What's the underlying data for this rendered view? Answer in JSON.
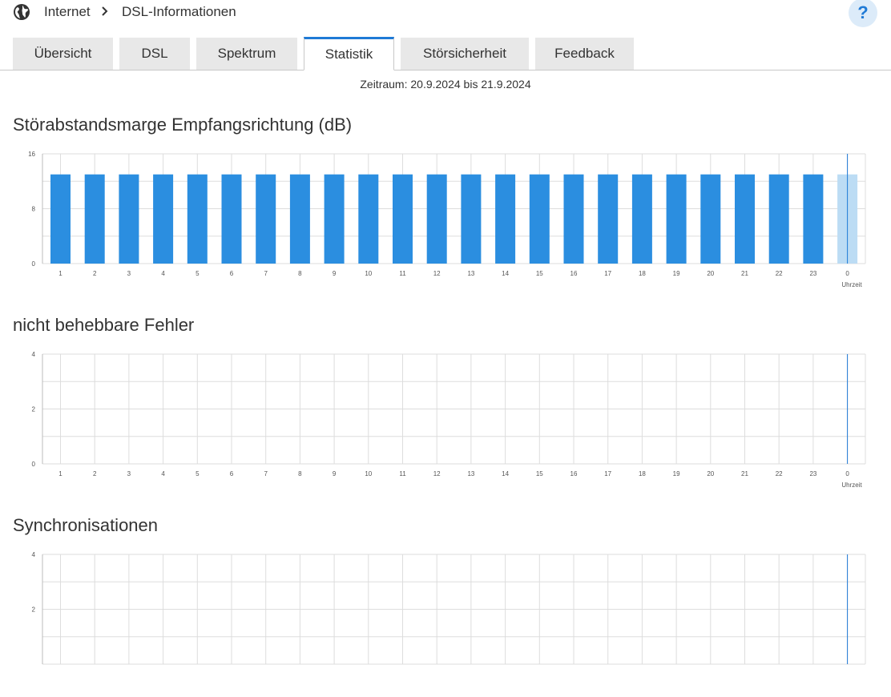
{
  "breadcrumb": {
    "items": [
      "Internet",
      "DSL-Informationen"
    ]
  },
  "help_label": "?",
  "tabs": [
    {
      "label": "Übersicht",
      "active": false
    },
    {
      "label": "DSL",
      "active": false
    },
    {
      "label": "Spektrum",
      "active": false
    },
    {
      "label": "Statistik",
      "active": true
    },
    {
      "label": "Störsicherheit",
      "active": false
    },
    {
      "label": "Feedback",
      "active": false
    }
  ],
  "period_text": "Zeitraum: 20.9.2024 bis 21.9.2024",
  "colors": {
    "accent": "#1f7ad6",
    "bar": "#2b8ee0",
    "bar_current": "#bcdcf4",
    "grid": "#dddddd"
  },
  "charts": [
    {
      "title": "Störabstandsmarge Empfangsrichtung (dB)"
    },
    {
      "title": "nicht behebbare Fehler"
    },
    {
      "title": "Synchronisationen"
    }
  ],
  "chart_data": [
    {
      "type": "bar",
      "title": "Störabstandsmarge Empfangsrichtung (dB)",
      "xlabel": "Uhrzeit",
      "ylabel": "",
      "ylim": [
        0,
        16
      ],
      "yticks": [
        "0",
        "8",
        "16"
      ],
      "categories": [
        "1",
        "2",
        "3",
        "4",
        "5",
        "6",
        "7",
        "8",
        "9",
        "10",
        "11",
        "12",
        "13",
        "14",
        "15",
        "16",
        "17",
        "18",
        "19",
        "20",
        "21",
        "22",
        "23",
        "0"
      ],
      "values": [
        13,
        13,
        13,
        13,
        13,
        13,
        13,
        13,
        13,
        13,
        13,
        13,
        13,
        13,
        13,
        13,
        13,
        13,
        13,
        13,
        13,
        13,
        13,
        13
      ],
      "current_index": 23,
      "grid": true
    },
    {
      "type": "bar",
      "title": "nicht behebbare Fehler",
      "xlabel": "Uhrzeit",
      "ylabel": "",
      "ylim": [
        0,
        4
      ],
      "yticks": [
        "0",
        "2",
        "4"
      ],
      "categories": [
        "1",
        "2",
        "3",
        "4",
        "5",
        "6",
        "7",
        "8",
        "9",
        "10",
        "11",
        "12",
        "13",
        "14",
        "15",
        "16",
        "17",
        "18",
        "19",
        "20",
        "21",
        "22",
        "23",
        "0"
      ],
      "values": [
        0,
        0,
        0,
        0,
        0,
        0,
        0,
        0,
        0,
        0,
        0,
        0,
        0,
        0,
        0,
        0,
        0,
        0,
        0,
        0,
        0,
        0,
        0,
        0
      ],
      "current_index": 23,
      "grid": true
    },
    {
      "type": "bar",
      "title": "Synchronisationen",
      "xlabel": "",
      "ylabel": "",
      "ylim": [
        0,
        4
      ],
      "yticks": [
        "2",
        "4"
      ],
      "categories": [],
      "values": [],
      "current_index": 23,
      "grid": true
    }
  ]
}
